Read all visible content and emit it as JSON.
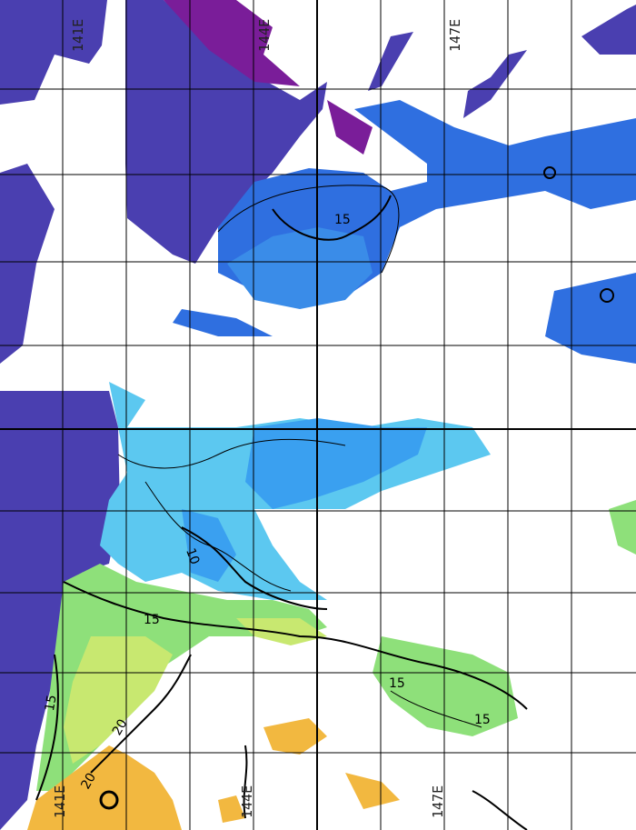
{
  "map": {
    "longitude_labels_top": [
      "141E",
      "144E",
      "147E"
    ],
    "longitude_labels_bottom": [
      "141E",
      "144E",
      "147E"
    ],
    "contour_labels": [
      "15",
      "10",
      "15",
      "20",
      "20",
      "15",
      "15",
      "15"
    ],
    "colors": {
      "land": "#4a3fb0",
      "land_coast": "#7a1d99",
      "cold_blue": "#2f6fe0",
      "mid_blue": "#3aa0f0",
      "cyan": "#5cc8f0",
      "green": "#8ee07a",
      "yellow_green": "#c8e870",
      "orange": "#f2b840",
      "grid": "#000000"
    }
  }
}
